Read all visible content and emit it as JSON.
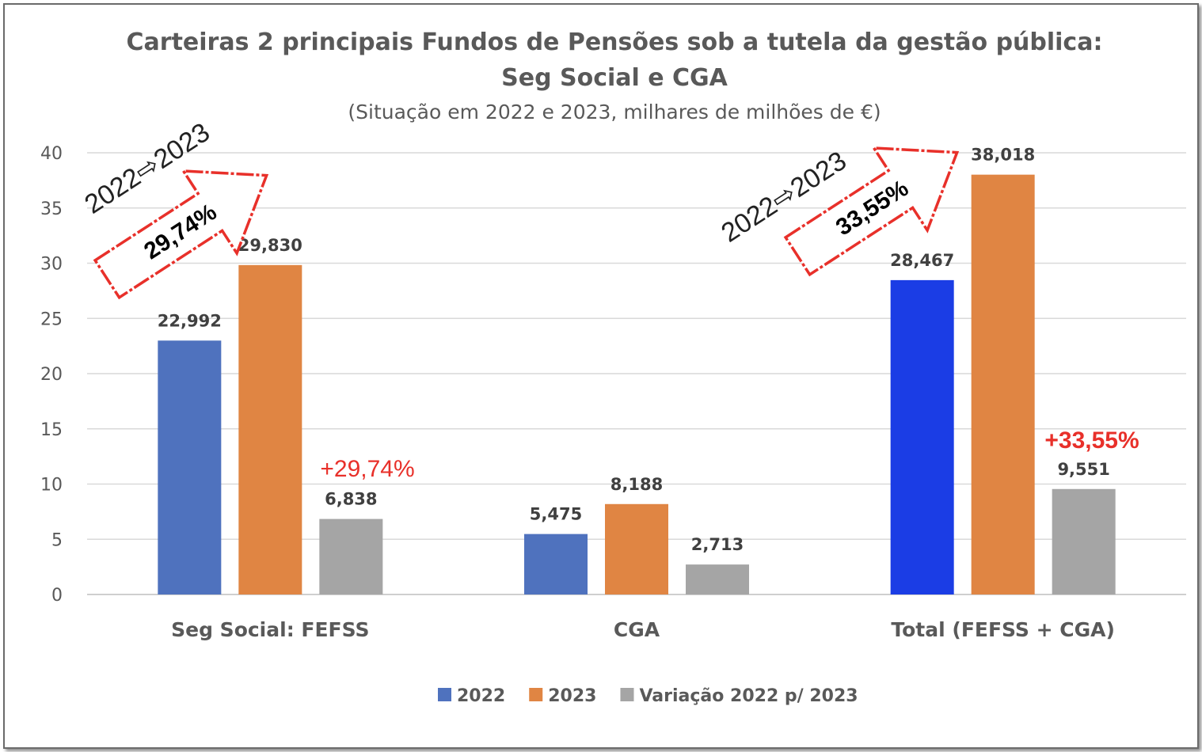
{
  "chart_data": {
    "type": "bar",
    "title": "Carteiras 2 principais Fundos de Pensões sob a tutela da gestão pública:",
    "title_line2": "Seg Social e CGA",
    "subtitle": "(Situação em 2022 e 2023, milhares de milhões de €)",
    "categories": [
      "Seg Social: FEFSS",
      "CGA",
      "Total (FEFSS + CGA)"
    ],
    "series": [
      {
        "name": "2022",
        "values": [
          22.992,
          5.475,
          28.467
        ],
        "labels": [
          "22,992",
          "5,475",
          "28,467"
        ],
        "color": "#4f72be",
        "point_colors": [
          "#4f72be",
          "#4f72be",
          "#1b3de5"
        ]
      },
      {
        "name": "2023",
        "values": [
          29.83,
          8.188,
          38.018
        ],
        "labels": [
          "29,830",
          "8,188",
          "38,018"
        ],
        "color": "#e08543"
      },
      {
        "name": "Variação 2022 p/ 2023",
        "values": [
          6.838,
          2.713,
          9.551
        ],
        "labels": [
          "6,838",
          "2,713",
          "9,551"
        ],
        "color": "#a5a5a5"
      }
    ],
    "ylim": [
      0,
      40
    ],
    "yticks": [
      0,
      5,
      10,
      15,
      20,
      25,
      30,
      35,
      40
    ],
    "grid": true,
    "legend_position": "bottom",
    "annotations": {
      "left_pct": "+29,74%",
      "right_pct": "+33,55%",
      "left_arrow_pct": "29,74%",
      "right_arrow_pct": "33,55%",
      "left_arrow_label": "2022⇨2023",
      "right_arrow_label": "2022⇨2023",
      "pct_color": "#e8302a",
      "arrow_color": "#e8302a"
    }
  }
}
